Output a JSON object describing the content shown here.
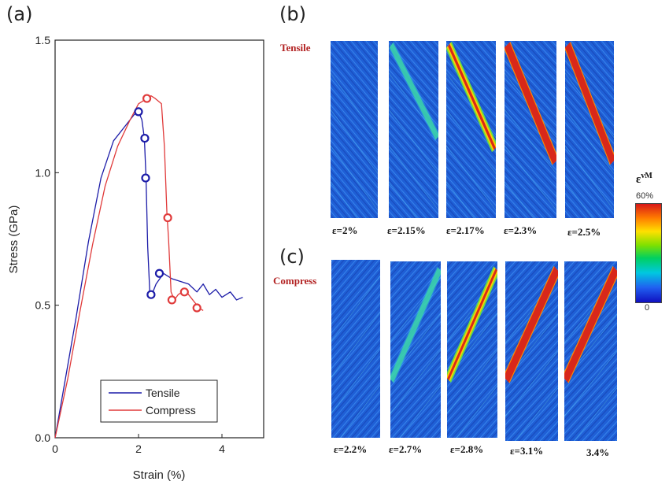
{
  "panels": {
    "a": "(a)",
    "b": "(b)",
    "c": "(c)"
  },
  "colors": {
    "tensile": "#1c1ca8",
    "compress": "#e03a3a",
    "field_blue": "#1f5fd6",
    "band_red": "#d8281a"
  },
  "chart_data": {
    "type": "line",
    "xlabel": "Strain (%)",
    "ylabel": "Stress (GPa)",
    "xlim": [
      0,
      5
    ],
    "ylim": [
      0,
      1.5
    ],
    "xticks": [
      0,
      2,
      4
    ],
    "yticks": [
      0.0,
      0.5,
      1.0,
      1.5
    ],
    "legend_position": "bottom-right",
    "series": [
      {
        "name": "Tensile",
        "color": "#1c1ca8",
        "x": [
          0,
          0.2,
          0.5,
          0.8,
          1.1,
          1.4,
          1.7,
          1.9,
          2.0,
          2.08,
          2.14,
          2.18,
          2.22,
          2.27,
          2.32,
          2.42,
          2.6,
          2.8,
          3.0,
          3.2,
          3.4,
          3.55,
          3.7,
          3.85,
          4.0,
          4.2,
          4.35,
          4.5
        ],
        "y": [
          0,
          0.18,
          0.45,
          0.74,
          0.98,
          1.12,
          1.18,
          1.22,
          1.23,
          1.2,
          1.13,
          0.98,
          0.72,
          0.55,
          0.54,
          0.58,
          0.62,
          0.6,
          0.59,
          0.58,
          0.55,
          0.58,
          0.54,
          0.56,
          0.53,
          0.55,
          0.52,
          0.53
        ]
      },
      {
        "name": "Compress",
        "color": "#e03a3a",
        "x": [
          0,
          0.3,
          0.6,
          0.9,
          1.2,
          1.5,
          1.8,
          2.0,
          2.2,
          2.3,
          2.4,
          2.55,
          2.62,
          2.68,
          2.72,
          2.78,
          2.86,
          2.95,
          3.05,
          3.15,
          3.3,
          3.45,
          3.55
        ],
        "y": [
          0,
          0.22,
          0.48,
          0.73,
          0.95,
          1.1,
          1.2,
          1.26,
          1.28,
          1.29,
          1.28,
          1.26,
          1.1,
          0.85,
          0.75,
          0.55,
          0.52,
          0.54,
          0.55,
          0.55,
          0.52,
          0.49,
          0.48
        ]
      }
    ],
    "markers": {
      "Tensile": {
        "x": [
          2.0,
          2.15,
          2.17,
          2.3,
          2.5
        ],
        "y": [
          1.23,
          1.13,
          0.98,
          0.54,
          0.62
        ]
      },
      "Compress": {
        "x": [
          2.2,
          2.7,
          2.8,
          3.1,
          3.4
        ],
        "y": [
          1.28,
          0.83,
          0.52,
          0.55,
          0.49
        ]
      }
    }
  },
  "rows": {
    "tensile": {
      "label": "Tensile",
      "strains": [
        "ε=2%",
        "ε=2.15%",
        "ε=2.17%",
        "ε=2.3%",
        "ε=2.5%"
      ],
      "band_level": [
        0,
        0.25,
        0.6,
        1,
        1
      ]
    },
    "compress": {
      "label": "Compress",
      "strains": [
        "ε=2.2%",
        "ε=2.7%",
        "ε=2.8%",
        "ε=3.1%",
        "3.4%"
      ],
      "band_level": [
        0,
        0.3,
        0.55,
        1,
        1
      ]
    }
  },
  "colorbar": {
    "title": "ε",
    "title_sup": "vM",
    "max_label": "60%",
    "min_label": "0"
  }
}
